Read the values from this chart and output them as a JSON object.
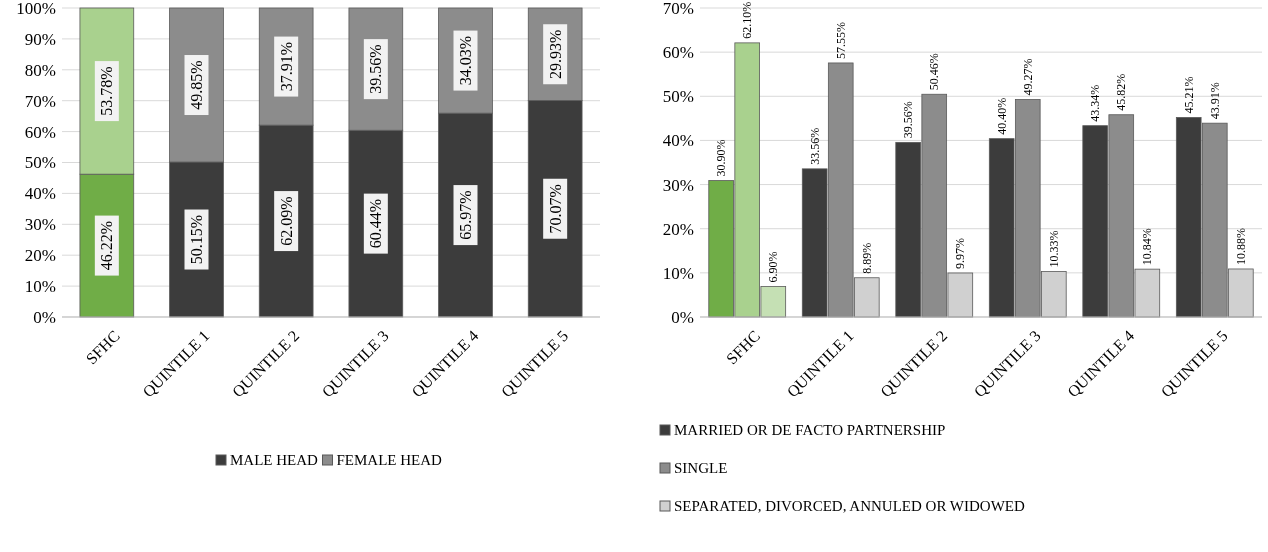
{
  "chart_data": [
    {
      "type": "bar",
      "stacked": true,
      "categories": [
        "SFHC",
        "QUINTILE 1",
        "QUINTILE 2",
        "QUINTILE 3",
        "QUINTILE 4",
        "QUINTILE 5"
      ],
      "series": [
        {
          "name": "MALE HEAD",
          "color": "#3c3c3c",
          "colors": [
            "#70ad47",
            "#3c3c3c",
            "#3c3c3c",
            "#3c3c3c",
            "#3c3c3c",
            "#3c3c3c"
          ],
          "values": [
            46.22,
            50.15,
            62.09,
            60.44,
            65.97,
            70.07
          ],
          "value_labels": [
            "46.22%",
            "50.15%",
            "62.09%",
            "60.44%",
            "65.97%",
            "70.07%"
          ]
        },
        {
          "name": "FEMALE HEAD",
          "color": "#8c8c8c",
          "colors": [
            "#a9d18e",
            "#8c8c8c",
            "#8c8c8c",
            "#8c8c8c",
            "#8c8c8c",
            "#8c8c8c"
          ],
          "values": [
            53.78,
            49.85,
            37.91,
            39.56,
            34.03,
            29.93
          ],
          "value_labels": [
            "53.78%",
            "49.85%",
            "37.91%",
            "39.56%",
            "34.03%",
            "29.93%"
          ]
        }
      ],
      "ylim": [
        0,
        100
      ],
      "yticks": [
        {
          "value": 0,
          "label": "0%"
        },
        {
          "value": 10,
          "label": "10%"
        },
        {
          "value": 20,
          "label": "20%"
        },
        {
          "value": 30,
          "label": "30%"
        },
        {
          "value": 40,
          "label": "40%"
        },
        {
          "value": 50,
          "label": "50%"
        },
        {
          "value": 60,
          "label": "60%"
        },
        {
          "value": 70,
          "label": "70%"
        },
        {
          "value": 80,
          "label": "80%"
        },
        {
          "value": 90,
          "label": "90%"
        },
        {
          "value": 100,
          "label": "100%"
        }
      ],
      "grid": "y",
      "legend": "bottom"
    },
    {
      "type": "bar",
      "categories": [
        "SFHC",
        "QUINTILE 1",
        "QUINTILE 2",
        "QUINTILE 3",
        "QUINTILE 4",
        "QUINTILE 5"
      ],
      "series": [
        {
          "name": "MARRIED OR DE FACTO PARTNERSHIP",
          "color": "#3c3c3c",
          "colors": [
            "#70ad47",
            "#3c3c3c",
            "#3c3c3c",
            "#3c3c3c",
            "#3c3c3c",
            "#3c3c3c"
          ],
          "values": [
            30.9,
            33.56,
            39.56,
            40.4,
            43.34,
            45.21
          ],
          "value_labels": [
            "30.90%",
            "33.56%",
            "39.56%",
            "40.40%",
            "43.34%",
            "45.21%"
          ]
        },
        {
          "name": "SINGLE",
          "color": "#8c8c8c",
          "colors": [
            "#a9d18e",
            "#8c8c8c",
            "#8c8c8c",
            "#8c8c8c",
            "#8c8c8c",
            "#8c8c8c"
          ],
          "values": [
            62.1,
            57.55,
            50.46,
            49.27,
            45.82,
            43.91
          ],
          "value_labels": [
            "62.10%",
            "57.55%",
            "50.46%",
            "49.27%",
            "45.82%",
            "43.91%"
          ]
        },
        {
          "name": "SEPARATED, DIVORCED, ANNULED OR WIDOWED",
          "color": "#d0d0d0",
          "colors": [
            "#c5e0b4",
            "#d0d0d0",
            "#d0d0d0",
            "#d0d0d0",
            "#d0d0d0",
            "#d0d0d0"
          ],
          "values": [
            6.9,
            8.89,
            9.97,
            10.33,
            10.84,
            10.88
          ],
          "value_labels": [
            "6.90%",
            "8.89%",
            "9.97%",
            "10.33%",
            "10.84%",
            "10.88%"
          ]
        }
      ],
      "ylim": [
        0,
        70
      ],
      "yticks": [
        {
          "value": 0,
          "label": "0%"
        },
        {
          "value": 10,
          "label": "10%"
        },
        {
          "value": 20,
          "label": "20%"
        },
        {
          "value": 30,
          "label": "30%"
        },
        {
          "value": 40,
          "label": "40%"
        },
        {
          "value": 50,
          "label": "50%"
        },
        {
          "value": 60,
          "label": "60%"
        },
        {
          "value": 70,
          "label": "70%"
        }
      ],
      "grid": "y",
      "legend": "bottom"
    }
  ]
}
